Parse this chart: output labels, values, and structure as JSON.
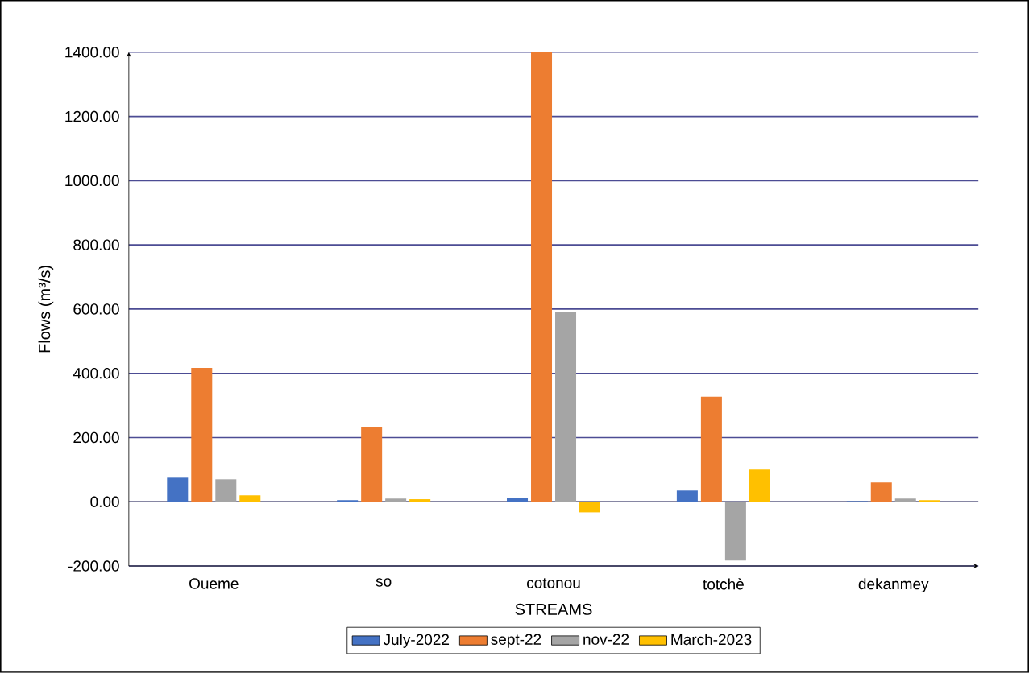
{
  "chart_data": {
    "type": "bar",
    "xlabel": "STREAMS",
    "ylabel": "Flows (m³/s)",
    "categories": [
      "Oueme",
      "so",
      "cotonou",
      "totchè",
      "dekanmey"
    ],
    "series": [
      {
        "name": "July-2022",
        "color": "#4472c4",
        "values": [
          75,
          5,
          13,
          35,
          2
        ]
      },
      {
        "name": "sept-22",
        "color": "#ed7d31",
        "values": [
          417,
          234,
          1400,
          327,
          60
        ]
      },
      {
        "name": "nov-22",
        "color": "#a5a5a5",
        "values": [
          70,
          10,
          590,
          -183,
          10
        ]
      },
      {
        "name": "March-2023",
        "color": "#ffc000",
        "values": [
          20,
          8,
          -33,
          100,
          5
        ]
      }
    ],
    "ylim": [
      -200,
      1400
    ],
    "yticks": [
      {
        "value": -200,
        "label": "-200.00"
      },
      {
        "value": 0,
        "label": "0.00"
      },
      {
        "value": 200,
        "label": "200.00"
      },
      {
        "value": 400,
        "label": "400.00"
      },
      {
        "value": 600,
        "label": "600.00"
      },
      {
        "value": 800,
        "label": "800.00"
      },
      {
        "value": 1000,
        "label": "1000.00"
      },
      {
        "value": 1200,
        "label": "1200.00"
      },
      {
        "value": 1400,
        "label": "1400.00"
      }
    ],
    "grid": "y",
    "legend": "bottom",
    "ref_lines": [
      {
        "axis": "y",
        "value": 0,
        "color": "#000000"
      }
    ]
  }
}
